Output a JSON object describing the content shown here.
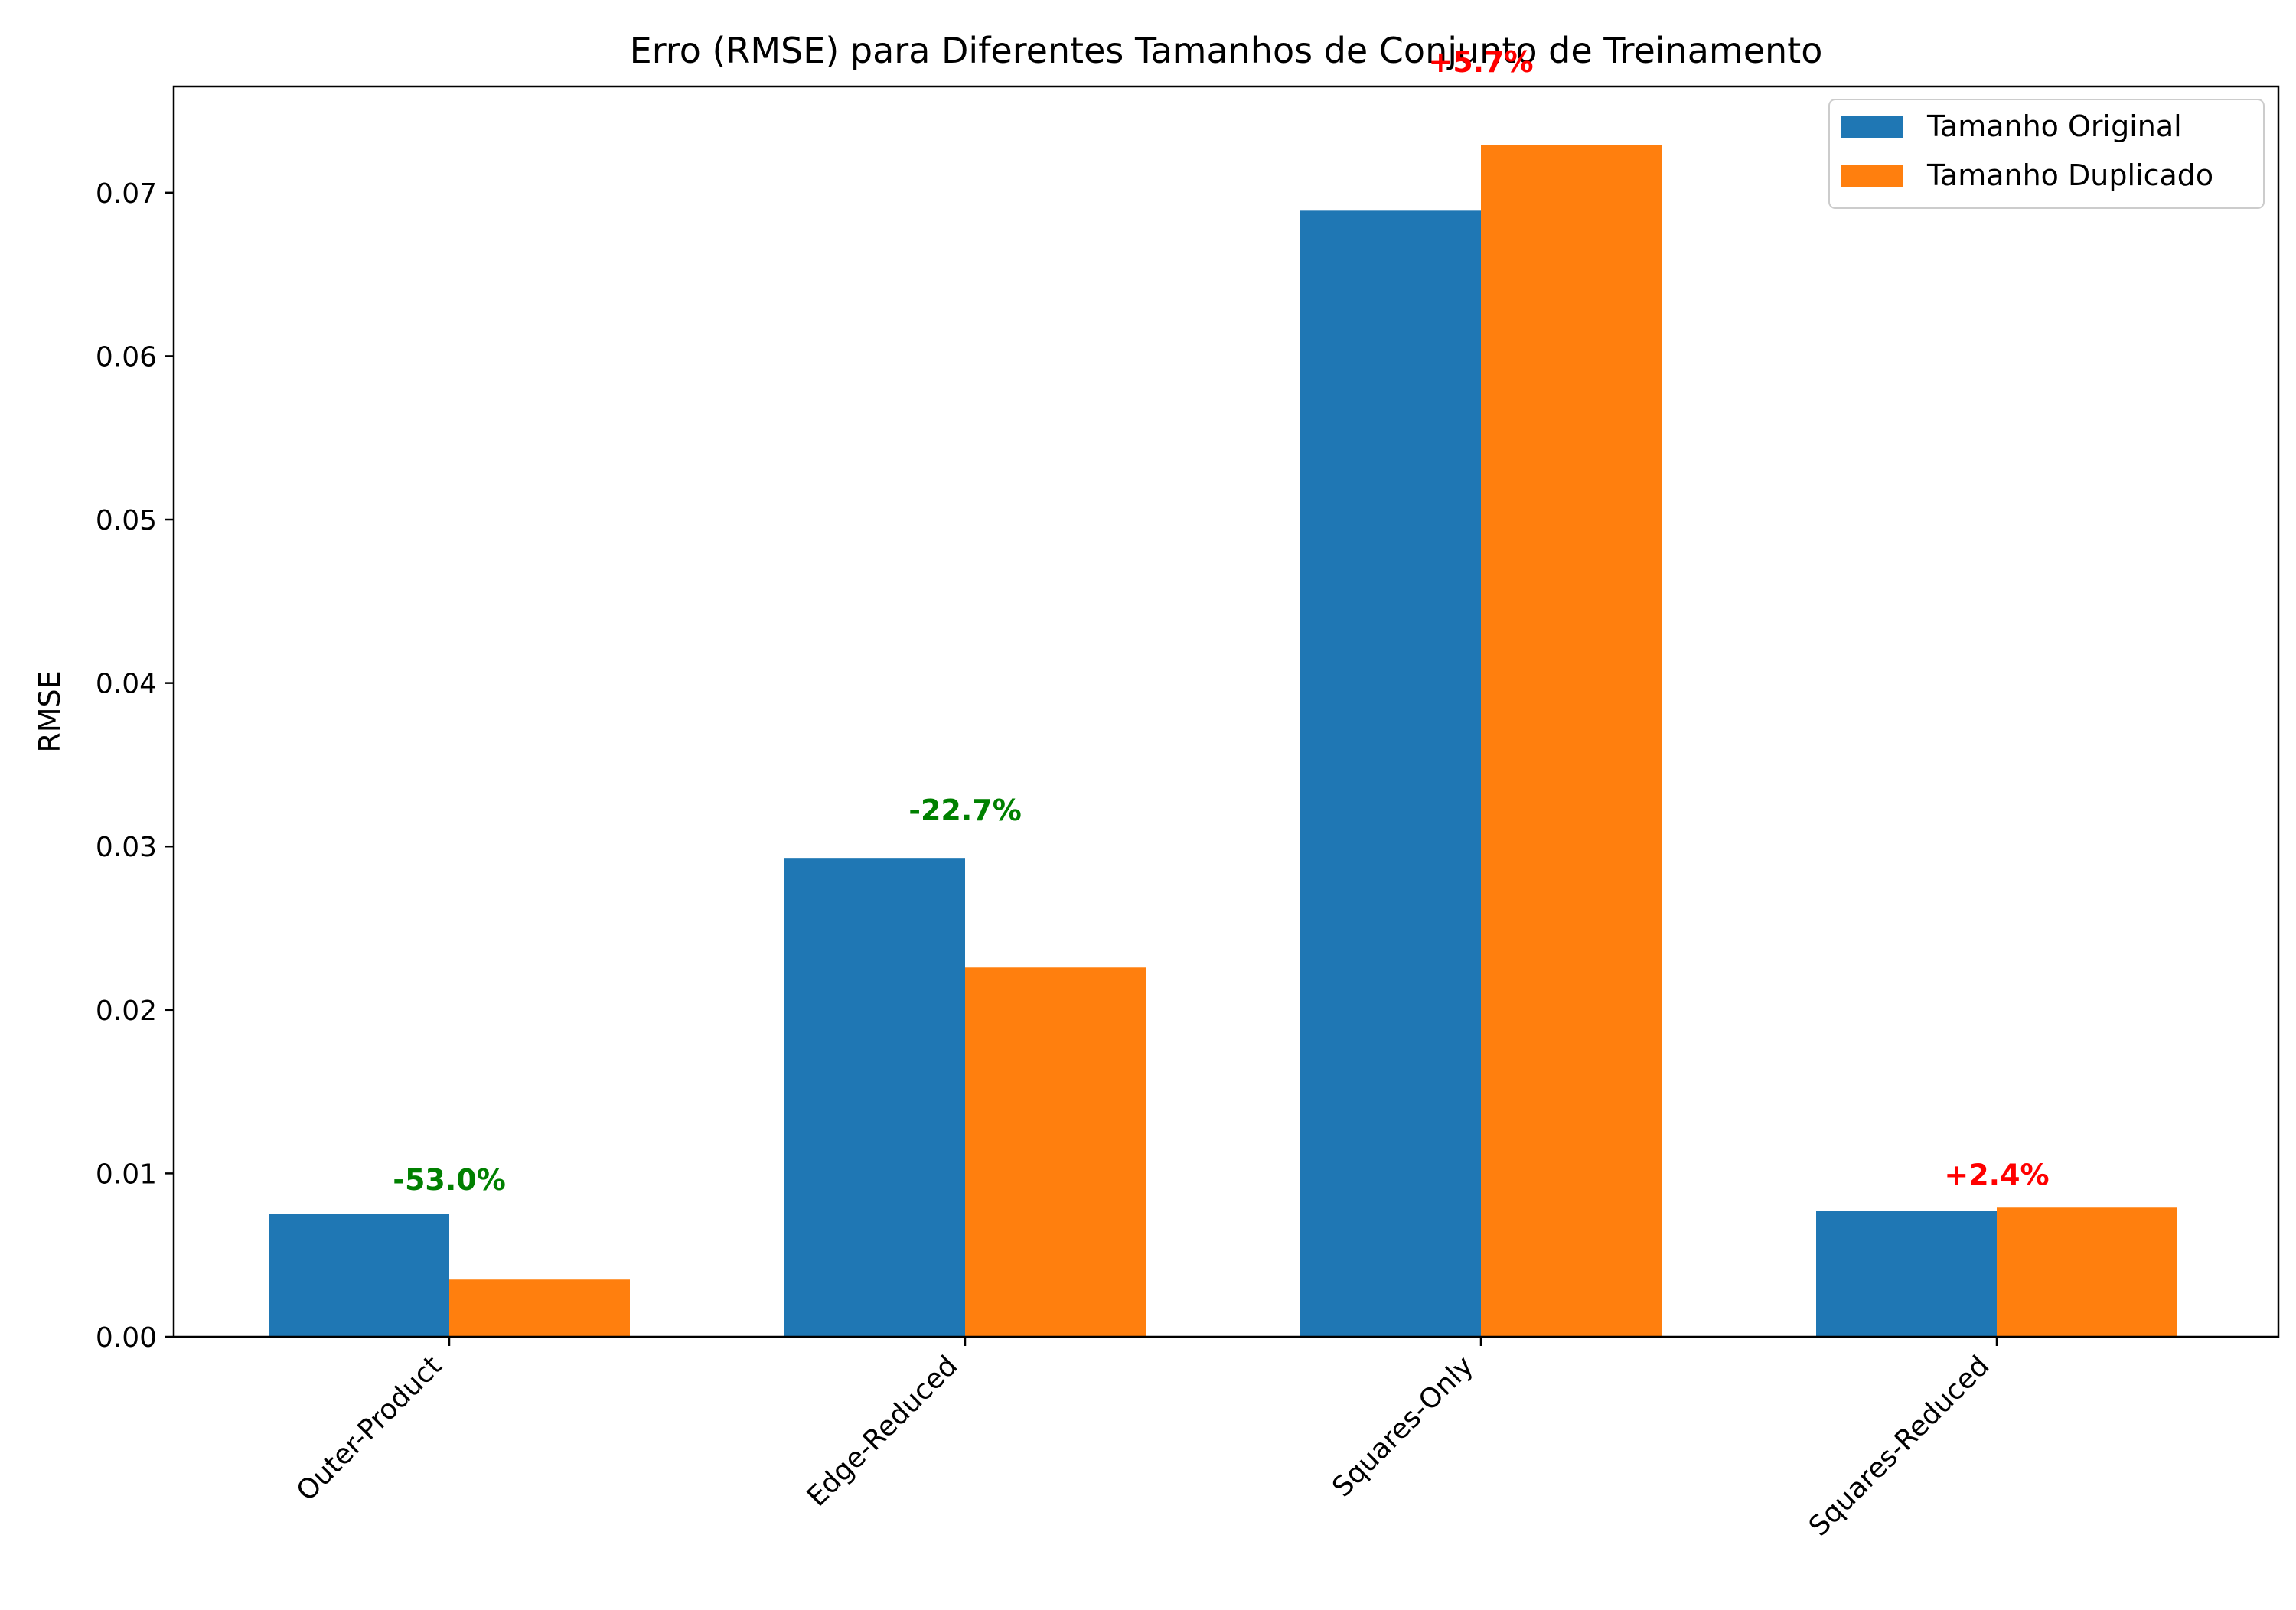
{
  "chart_data": {
    "type": "bar",
    "title": "Erro (RMSE) para Diferentes Tamanhos de Conjunto de Treinamento",
    "xlabel": "",
    "ylabel": "RMSE",
    "categories": [
      "Outer-Product",
      "Edge-Reduced",
      "Squares-Only",
      "Squares-Reduced"
    ],
    "series": [
      {
        "name": "Tamanho Original",
        "color": "#1f77b4",
        "values": [
          0.0075,
          0.0293,
          0.0689,
          0.0077
        ]
      },
      {
        "name": "Tamanho Duplicado",
        "color": "#ff7f0e",
        "values": [
          0.0035,
          0.0226,
          0.0729,
          0.0079
        ]
      }
    ],
    "annotations": [
      {
        "category": "Outer-Product",
        "text": "-53.0%",
        "y": 0.009,
        "color": "#008000"
      },
      {
        "category": "Edge-Reduced",
        "text": "-22.7%",
        "y": 0.0316,
        "color": "#008000"
      },
      {
        "category": "Squares-Only",
        "text": "+5.7%",
        "y": 0.0774,
        "color": "#ff0000"
      },
      {
        "category": "Squares-Reduced",
        "text": "+2.4%",
        "y": 0.0093,
        "color": "#ff0000"
      }
    ],
    "ylim": [
      0,
      0.0765
    ],
    "yticks": [
      "0.00",
      "0.01",
      "0.02",
      "0.03",
      "0.04",
      "0.05",
      "0.06",
      "0.07"
    ],
    "grid": false,
    "legend_position": "top-right"
  }
}
